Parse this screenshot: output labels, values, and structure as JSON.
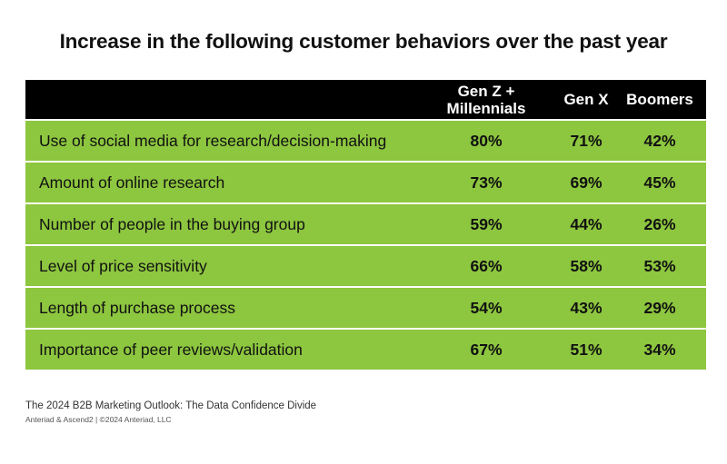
{
  "chart_data": {
    "type": "table",
    "title": "Increase in the following customer behaviors over the past year",
    "columns": [
      "Gen Z + Millennials",
      "Gen X",
      "Boomers"
    ],
    "rows": [
      {
        "label": "Use of social media for research/decision-making",
        "values": [
          "80%",
          "71%",
          "42%"
        ]
      },
      {
        "label": "Amount of online research",
        "values": [
          "73%",
          "69%",
          "45%"
        ]
      },
      {
        "label": "Number of people in the buying group",
        "values": [
          "59%",
          "44%",
          "26%"
        ]
      },
      {
        "label": "Level of price sensitivity",
        "values": [
          "66%",
          "58%",
          "53%"
        ]
      },
      {
        "label": "Length of purchase process",
        "values": [
          "54%",
          "43%",
          "29%"
        ]
      },
      {
        "label": "Importance of peer reviews/validation",
        "values": [
          "67%",
          "51%",
          "34%"
        ]
      }
    ],
    "colors": {
      "header_bg": "#000000",
      "row_bg": "#8dc63f"
    }
  },
  "footer": {
    "source": "The 2024 B2B Marketing Outlook: The Data Confidence Divide",
    "credit": "Anteriad & Ascend2 | ©2024 Anteriad, LLC"
  }
}
